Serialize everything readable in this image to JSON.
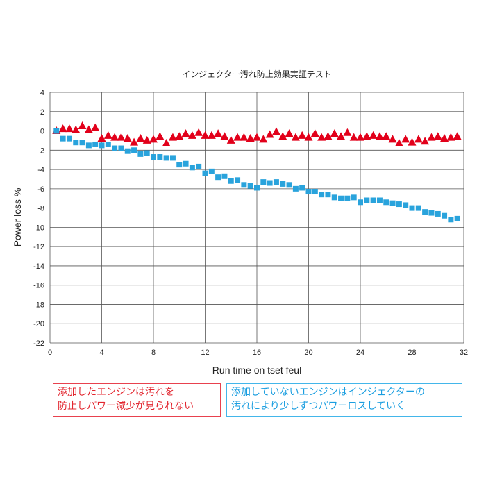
{
  "chart_data": {
    "type": "scatter",
    "title": "インジェクター汚れ防止効果実証テスト",
    "xlabel": "Run time on tset feul",
    "ylabel": "Power loss %",
    "xlim": [
      0,
      32
    ],
    "ylim": [
      -22,
      4
    ],
    "xticks": [
      "0",
      "4",
      "8",
      "12",
      "16",
      "20",
      "24",
      "28",
      "32"
    ],
    "yticks": [
      "4",
      "2",
      "0",
      "-2",
      "-4",
      "-6",
      "-8",
      "-10",
      "-12",
      "-14",
      "-16",
      "-18",
      "-20",
      "-22"
    ],
    "grid": true,
    "series": [
      {
        "marker": "triangle",
        "color": "#e2001a",
        "x": [
          0.5,
          1,
          1.5,
          2,
          2.5,
          3,
          3.5,
          4,
          4.5,
          5,
          5.5,
          6,
          6.5,
          7,
          7.5,
          8,
          8.5,
          9,
          9.5,
          10,
          10.5,
          11,
          11.5,
          12,
          12.5,
          13,
          13.5,
          14,
          14.5,
          15,
          15.5,
          16,
          16.5,
          17,
          17.5,
          18,
          18.5,
          19,
          19.5,
          20,
          20.5,
          21,
          21.5,
          22,
          22.5,
          23,
          23.5,
          24,
          24.5,
          25,
          25.5,
          26,
          26.5,
          27,
          27.5,
          28,
          28.5,
          29,
          29.5,
          30,
          30.5,
          31,
          31.5
        ],
        "y": [
          0.0,
          0.2,
          0.2,
          0.1,
          0.5,
          0.1,
          0.3,
          -0.8,
          -0.5,
          -0.7,
          -0.7,
          -0.8,
          -1.2,
          -0.8,
          -1.0,
          -0.9,
          -0.6,
          -1.3,
          -0.7,
          -0.6,
          -0.3,
          -0.5,
          -0.2,
          -0.5,
          -0.5,
          -0.3,
          -0.6,
          -1.0,
          -0.7,
          -0.7,
          -0.8,
          -0.7,
          -0.9,
          -0.4,
          -0.1,
          -0.6,
          -0.3,
          -0.7,
          -0.5,
          -0.7,
          -0.3,
          -0.7,
          -0.6,
          -0.3,
          -0.6,
          -0.2,
          -0.7,
          -0.7,
          -0.6,
          -0.5,
          -0.6,
          -0.6,
          -0.9,
          -1.3,
          -0.9,
          -1.2,
          -0.9,
          -1.1,
          -0.7,
          -0.6,
          -0.8,
          -0.7,
          -0.6
        ]
      },
      {
        "marker": "square",
        "color": "#29a3dc",
        "x": [
          0.5,
          1,
          1.5,
          2,
          2.5,
          3,
          3.5,
          4,
          4.5,
          5,
          5.5,
          6,
          6.5,
          7,
          7.5,
          8,
          8.5,
          9,
          9.5,
          10,
          10.5,
          11,
          11.5,
          12,
          12.5,
          13,
          13.5,
          14,
          14.5,
          15,
          15.5,
          16,
          16.5,
          17,
          17.5,
          18,
          18.5,
          19,
          19.5,
          20,
          20.5,
          21,
          21.5,
          22,
          22.5,
          23,
          23.5,
          24,
          24.5,
          25,
          25.5,
          26,
          26.5,
          27,
          27.5,
          28,
          28.5,
          29,
          29.5,
          30,
          30.5,
          31,
          31.5
        ],
        "y": [
          0.0,
          -0.8,
          -0.8,
          -1.2,
          -1.2,
          -1.5,
          -1.4,
          -1.5,
          -1.4,
          -1.8,
          -1.8,
          -2.1,
          -2.0,
          -2.4,
          -2.3,
          -2.7,
          -2.7,
          -2.8,
          -2.8,
          -3.5,
          -3.4,
          -3.8,
          -3.7,
          -4.4,
          -4.2,
          -4.8,
          -4.7,
          -5.2,
          -5.1,
          -5.6,
          -5.7,
          -5.9,
          -5.3,
          -5.4,
          -5.3,
          -5.5,
          -5.6,
          -6.0,
          -5.9,
          -6.3,
          -6.3,
          -6.6,
          -6.6,
          -6.9,
          -7.0,
          -7.0,
          -6.9,
          -7.4,
          -7.2,
          -7.2,
          -7.2,
          -7.4,
          -7.5,
          -7.6,
          -7.7,
          -8.0,
          -8.0,
          -8.4,
          -8.5,
          -8.6,
          -8.8,
          -9.2,
          -9.1
        ]
      }
    ],
    "annotations": [
      {
        "color": "#e2262f",
        "lines": [
          "添加したエンジンは汚れを",
          "防止しパワー減少が見られない"
        ]
      },
      {
        "color": "#1a9ee0",
        "lines": [
          "添加していないエンジンはインジェクターの",
          "汚れにより少しずつパワーロスしていく"
        ]
      }
    ]
  }
}
